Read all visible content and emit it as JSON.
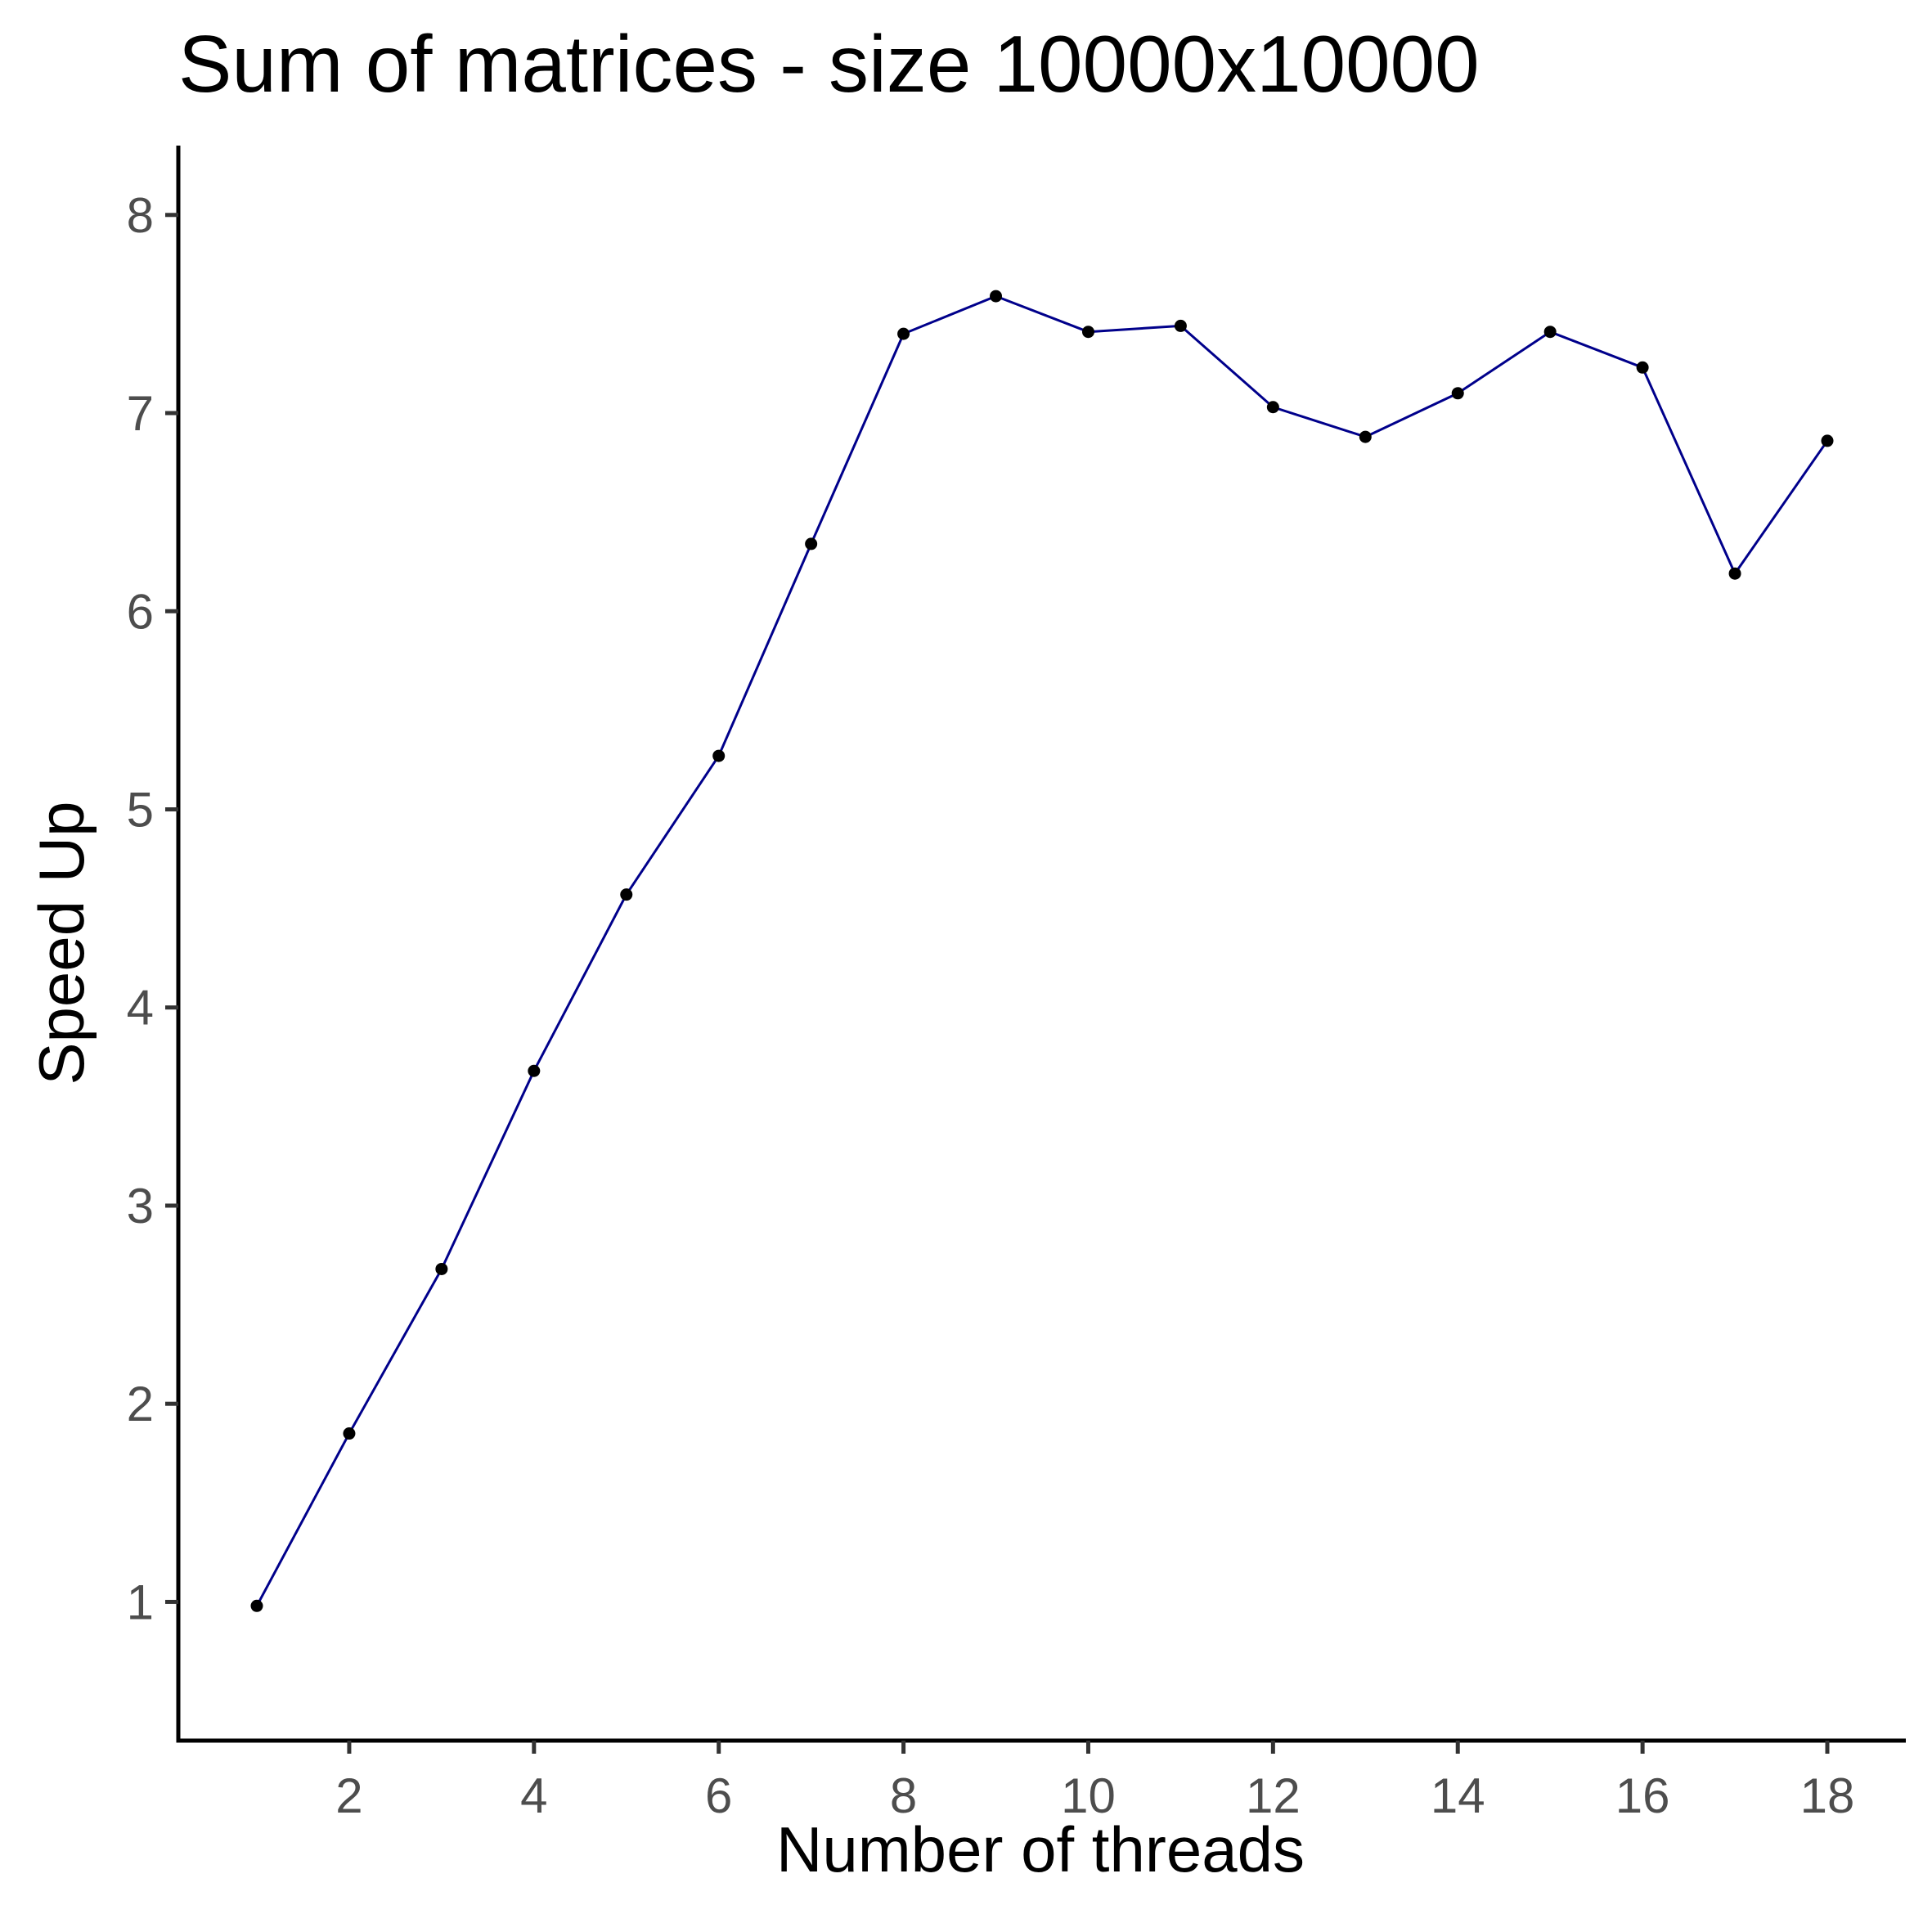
{
  "chart_data": {
    "type": "line",
    "title": "Sum of matrices - size 10000x10000",
    "xlabel": "Number of threads",
    "ylabel": "Speed Up",
    "xlim": [
      0.15,
      18.85
    ],
    "ylim": [
      0.3,
      8.35
    ],
    "x_ticks": [
      2,
      4,
      6,
      8,
      10,
      12,
      14,
      16,
      18
    ],
    "y_ticks": [
      1,
      2,
      3,
      4,
      5,
      6,
      7,
      8
    ],
    "grid": false,
    "legend": "none",
    "line_color": "#00008B",
    "point_color": "#000000",
    "series": [
      {
        "x": [
          1,
          2,
          3,
          4,
          5,
          6,
          7,
          8,
          9,
          10,
          11,
          12,
          13,
          14,
          15,
          16,
          17,
          18
        ],
        "y": [
          0.98,
          1.85,
          2.68,
          3.68,
          4.57,
          5.27,
          6.34,
          7.4,
          7.59,
          7.41,
          7.44,
          7.03,
          6.88,
          7.1,
          7.41,
          7.23,
          6.19,
          6.86
        ]
      }
    ]
  }
}
